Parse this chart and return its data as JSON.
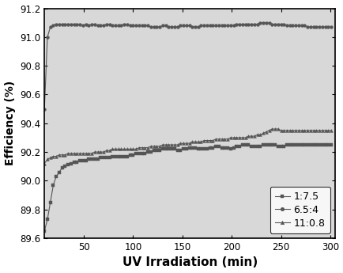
{
  "title": "",
  "xlabel": "UV Irradiation (min)",
  "ylabel": "Efficiency (%)",
  "xlim": [
    10,
    305
  ],
  "ylim": [
    89.6,
    91.2
  ],
  "yticks": [
    89.6,
    89.8,
    90.0,
    90.2,
    90.4,
    90.6,
    90.8,
    91.0,
    91.2
  ],
  "xticks": [
    50,
    100,
    150,
    200,
    250,
    300
  ],
  "legend_labels": [
    "1:7.5",
    "6.5:4",
    "11:0.8"
  ],
  "line_color": "#555555",
  "bg_color": "#d8d8d8",
  "series": {
    "1_7.5": {
      "x": [
        10,
        13,
        16,
        19,
        22,
        25,
        28,
        31,
        34,
        37,
        40,
        43,
        46,
        49,
        52,
        55,
        58,
        61,
        64,
        67,
        70,
        73,
        76,
        79,
        82,
        85,
        88,
        91,
        94,
        97,
        100,
        103,
        106,
        109,
        112,
        115,
        118,
        121,
        124,
        127,
        130,
        133,
        136,
        139,
        142,
        145,
        148,
        151,
        154,
        157,
        160,
        163,
        166,
        169,
        172,
        175,
        178,
        181,
        184,
        187,
        190,
        193,
        196,
        199,
        202,
        205,
        208,
        211,
        214,
        217,
        220,
        223,
        226,
        229,
        232,
        235,
        238,
        241,
        244,
        247,
        250,
        253,
        256,
        259,
        262,
        265,
        268,
        271,
        274,
        277,
        280,
        283,
        286,
        289,
        292,
        295,
        298,
        301
      ],
      "y": [
        89.65,
        89.73,
        89.85,
        89.97,
        90.03,
        90.06,
        90.09,
        90.1,
        90.11,
        90.12,
        90.13,
        90.13,
        90.14,
        90.14,
        90.14,
        90.15,
        90.15,
        90.15,
        90.15,
        90.16,
        90.16,
        90.16,
        90.16,
        90.17,
        90.17,
        90.17,
        90.17,
        90.17,
        90.17,
        90.18,
        90.18,
        90.19,
        90.19,
        90.19,
        90.19,
        90.2,
        90.2,
        90.21,
        90.21,
        90.21,
        90.22,
        90.22,
        90.22,
        90.22,
        90.22,
        90.21,
        90.21,
        90.22,
        90.22,
        90.23,
        90.23,
        90.23,
        90.22,
        90.22,
        90.22,
        90.22,
        90.23,
        90.23,
        90.24,
        90.24,
        90.23,
        90.23,
        90.23,
        90.22,
        90.23,
        90.24,
        90.24,
        90.25,
        90.25,
        90.25,
        90.24,
        90.24,
        90.24,
        90.24,
        90.25,
        90.25,
        90.25,
        90.25,
        90.25,
        90.24,
        90.24,
        90.24,
        90.25,
        90.25,
        90.25,
        90.25,
        90.25,
        90.25,
        90.25,
        90.25,
        90.25,
        90.25,
        90.25,
        90.25,
        90.25,
        90.25,
        90.25,
        90.25
      ]
    },
    "6.5_4": {
      "x": [
        10,
        13,
        16,
        19,
        22,
        25,
        28,
        31,
        34,
        37,
        40,
        43,
        46,
        49,
        52,
        55,
        58,
        61,
        64,
        67,
        70,
        73,
        76,
        79,
        82,
        85,
        88,
        91,
        94,
        97,
        100,
        103,
        106,
        109,
        112,
        115,
        118,
        121,
        124,
        127,
        130,
        133,
        136,
        139,
        142,
        145,
        148,
        151,
        154,
        157,
        160,
        163,
        166,
        169,
        172,
        175,
        178,
        181,
        184,
        187,
        190,
        193,
        196,
        199,
        202,
        205,
        208,
        211,
        214,
        217,
        220,
        223,
        226,
        229,
        232,
        235,
        238,
        241,
        244,
        247,
        250,
        253,
        256,
        259,
        262,
        265,
        268,
        271,
        274,
        277,
        280,
        283,
        286,
        289,
        292,
        295,
        298,
        301
      ],
      "y": [
        90.5,
        91.0,
        91.07,
        91.08,
        91.09,
        91.09,
        91.09,
        91.09,
        91.09,
        91.09,
        91.09,
        91.09,
        91.09,
        91.08,
        91.09,
        91.08,
        91.09,
        91.09,
        91.08,
        91.08,
        91.08,
        91.09,
        91.09,
        91.08,
        91.08,
        91.08,
        91.08,
        91.09,
        91.09,
        91.08,
        91.08,
        91.08,
        91.08,
        91.08,
        91.08,
        91.08,
        91.07,
        91.07,
        91.07,
        91.07,
        91.08,
        91.08,
        91.07,
        91.07,
        91.07,
        91.07,
        91.08,
        91.08,
        91.08,
        91.08,
        91.07,
        91.07,
        91.07,
        91.08,
        91.08,
        91.08,
        91.08,
        91.08,
        91.08,
        91.08,
        91.08,
        91.08,
        91.08,
        91.08,
        91.08,
        91.09,
        91.09,
        91.09,
        91.09,
        91.09,
        91.09,
        91.09,
        91.09,
        91.1,
        91.1,
        91.1,
        91.1,
        91.09,
        91.09,
        91.09,
        91.09,
        91.09,
        91.08,
        91.08,
        91.08,
        91.08,
        91.08,
        91.08,
        91.08,
        91.07,
        91.07,
        91.07,
        91.07,
        91.07,
        91.07,
        91.07,
        91.07,
        91.07
      ]
    },
    "11_0.8": {
      "x": [
        10,
        13,
        16,
        19,
        22,
        25,
        28,
        31,
        34,
        37,
        40,
        43,
        46,
        49,
        52,
        55,
        58,
        61,
        64,
        67,
        70,
        73,
        76,
        79,
        82,
        85,
        88,
        91,
        94,
        97,
        100,
        103,
        106,
        109,
        112,
        115,
        118,
        121,
        124,
        127,
        130,
        133,
        136,
        139,
        142,
        145,
        148,
        151,
        154,
        157,
        160,
        163,
        166,
        169,
        172,
        175,
        178,
        181,
        184,
        187,
        190,
        193,
        196,
        199,
        202,
        205,
        208,
        211,
        214,
        217,
        220,
        223,
        226,
        229,
        232,
        235,
        238,
        241,
        244,
        247,
        250,
        253,
        256,
        259,
        262,
        265,
        268,
        271,
        274,
        277,
        280,
        283,
        286,
        289,
        292,
        295,
        298,
        301
      ],
      "y": [
        90.12,
        90.15,
        90.16,
        90.17,
        90.17,
        90.18,
        90.18,
        90.18,
        90.19,
        90.19,
        90.19,
        90.19,
        90.19,
        90.19,
        90.19,
        90.19,
        90.19,
        90.2,
        90.2,
        90.2,
        90.2,
        90.21,
        90.21,
        90.22,
        90.22,
        90.22,
        90.22,
        90.22,
        90.22,
        90.22,
        90.22,
        90.22,
        90.23,
        90.23,
        90.23,
        90.23,
        90.24,
        90.24,
        90.24,
        90.24,
        90.25,
        90.25,
        90.25,
        90.25,
        90.25,
        90.25,
        90.26,
        90.26,
        90.26,
        90.26,
        90.27,
        90.27,
        90.27,
        90.27,
        90.28,
        90.28,
        90.28,
        90.28,
        90.29,
        90.29,
        90.29,
        90.29,
        90.29,
        90.3,
        90.3,
        90.3,
        90.3,
        90.3,
        90.3,
        90.31,
        90.31,
        90.31,
        90.32,
        90.32,
        90.33,
        90.34,
        90.35,
        90.36,
        90.36,
        90.36,
        90.35,
        90.35,
        90.35,
        90.35,
        90.35,
        90.35,
        90.35,
        90.35,
        90.35,
        90.35,
        90.35,
        90.35,
        90.35,
        90.35,
        90.35,
        90.35,
        90.35,
        90.35
      ]
    }
  }
}
